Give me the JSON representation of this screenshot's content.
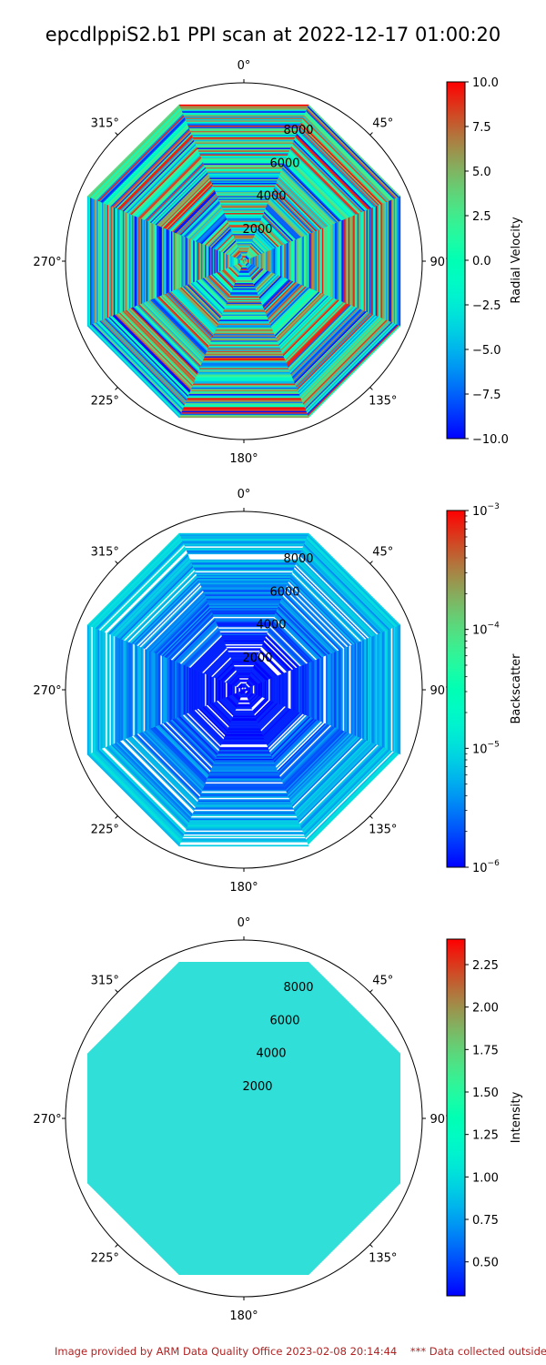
{
  "title": "epcdlppiS2.b1 PPI scan at 2022-12-17 01:00:20",
  "footer": {
    "provided": "Image provided by ARM Data Quality Office 2023-02-08 20:14:44",
    "notice": "*** Data collected outside"
  },
  "chart_data": [
    {
      "type": "heatmap",
      "projection": "polar",
      "theta_zero": "north",
      "theta_direction": "clockwise",
      "angle_ticks": [
        "0°",
        "45°",
        "90°",
        "135°",
        "180°",
        "225°",
        "270°",
        "315°"
      ],
      "radial_ticks": [
        2000,
        4000,
        6000,
        8000
      ],
      "rlim": [
        0,
        10000
      ],
      "beam_max_range": 9500,
      "azimuth_step_deg": 45,
      "colorbar": {
        "label": "Radial Velocity",
        "scale": "linear",
        "range": [
          -10,
          10
        ],
        "ticks": [
          "10.0",
          "7.5",
          "5.0",
          "2.5",
          "0.0",
          "−2.5",
          "−5.0",
          "−7.5",
          "−10.0"
        ],
        "tick_values": [
          10,
          7.5,
          5,
          2.5,
          0,
          -2.5,
          -5,
          -7.5,
          -10
        ],
        "colormap": "rainbow"
      },
      "field_description": "noisy values spanning the full color range"
    },
    {
      "type": "heatmap",
      "projection": "polar",
      "theta_zero": "north",
      "theta_direction": "clockwise",
      "angle_ticks": [
        "0°",
        "45°",
        "90°",
        "135°",
        "180°",
        "225°",
        "270°",
        "315°"
      ],
      "radial_ticks": [
        2000,
        4000,
        6000,
        8000
      ],
      "rlim": [
        0,
        10000
      ],
      "beam_max_range": 9500,
      "azimuth_step_deg": 45,
      "colorbar": {
        "label": "Backscatter",
        "scale": "log",
        "range": [
          1e-06,
          0.001
        ],
        "ticks": [
          "10",
          "10",
          "10",
          "10"
        ],
        "tick_exponents": [
          "−3",
          "−4",
          "−5",
          "−6"
        ],
        "tick_values": [
          0.001,
          0.0001,
          1e-05,
          1e-06
        ],
        "colormap": "rainbow"
      },
      "field_description": "mostly low values near 1e-6 with higher values toward outer range, white gaps"
    },
    {
      "type": "heatmap",
      "projection": "polar",
      "theta_zero": "north",
      "theta_direction": "clockwise",
      "angle_ticks": [
        "0°",
        "45°",
        "90°",
        "135°",
        "180°",
        "225°",
        "270°",
        "315°"
      ],
      "radial_ticks": [
        2000,
        4000,
        6000,
        8000
      ],
      "rlim": [
        0,
        10000
      ],
      "beam_max_range": 9500,
      "azimuth_step_deg": 45,
      "colorbar": {
        "label": "Intensity",
        "scale": "linear",
        "range": [
          0.3,
          2.4
        ],
        "ticks": [
          "2.25",
          "2.00",
          "1.75",
          "1.50",
          "1.25",
          "1.00",
          "0.75",
          "0.50"
        ],
        "tick_values": [
          2.25,
          2.0,
          1.75,
          1.5,
          1.25,
          1.0,
          0.75,
          0.5
        ],
        "colormap": "rainbow"
      },
      "uniform_value": 1.0,
      "field_description": "uniform value about 1.0 everywhere"
    }
  ]
}
